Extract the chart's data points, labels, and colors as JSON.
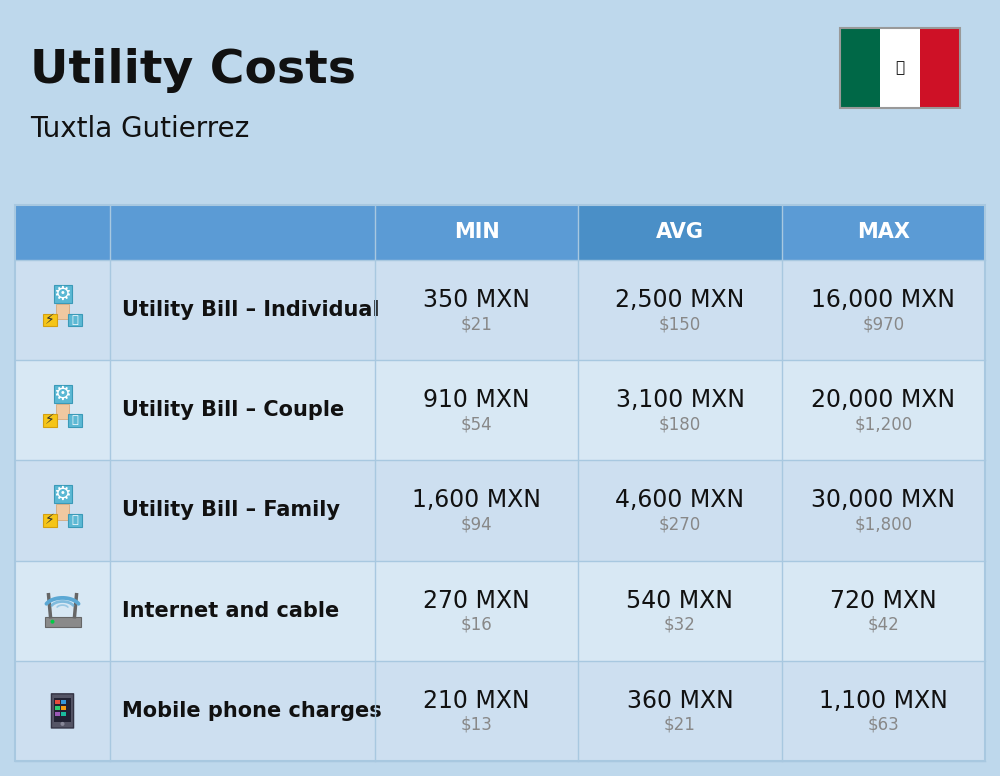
{
  "title": "Utility Costs",
  "subtitle": "Tuxtla Gutierrez",
  "background_color": "#bed8ec",
  "header_bg_color": "#5b9bd5",
  "header_bg_color2": "#4a8fc7",
  "row_bg_odd": "#cddff0",
  "row_bg_even": "#d8e8f4",
  "divider_color": "#a8c8e0",
  "col_headers": [
    "MIN",
    "AVG",
    "MAX"
  ],
  "rows": [
    {
      "label": "Utility Bill – Individual",
      "min_mxn": "350 MXN",
      "min_usd": "$21",
      "avg_mxn": "2,500 MXN",
      "avg_usd": "$150",
      "max_mxn": "16,000 MXN",
      "max_usd": "$970"
    },
    {
      "label": "Utility Bill – Couple",
      "min_mxn": "910 MXN",
      "min_usd": "$54",
      "avg_mxn": "3,100 MXN",
      "avg_usd": "$180",
      "max_mxn": "20,000 MXN",
      "max_usd": "$1,200"
    },
    {
      "label": "Utility Bill – Family",
      "min_mxn": "1,600 MXN",
      "min_usd": "$94",
      "avg_mxn": "4,600 MXN",
      "avg_usd": "$270",
      "max_mxn": "30,000 MXN",
      "max_usd": "$1,800"
    },
    {
      "label": "Internet and cable",
      "min_mxn": "270 MXN",
      "min_usd": "$16",
      "avg_mxn": "540 MXN",
      "avg_usd": "$32",
      "max_mxn": "720 MXN",
      "max_usd": "$42"
    },
    {
      "label": "Mobile phone charges",
      "min_mxn": "210 MXN",
      "min_usd": "$13",
      "avg_mxn": "360 MXN",
      "avg_usd": "$21",
      "max_mxn": "1,100 MXN",
      "max_usd": "$63"
    }
  ],
  "title_fontsize": 34,
  "subtitle_fontsize": 20,
  "header_fontsize": 15,
  "label_fontsize": 15,
  "value_fontsize": 17,
  "subvalue_fontsize": 12,
  "flag_green": "#006847",
  "flag_white": "#ffffff",
  "flag_red": "#ce1126"
}
